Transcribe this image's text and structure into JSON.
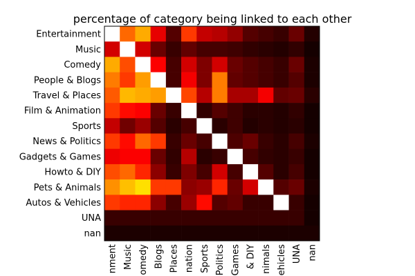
{
  "chart_data": {
    "type": "heatmap",
    "title": "percentage of category being linked to each other",
    "rows": [
      "Entertainment",
      "Music",
      "Comedy",
      "People & Blogs",
      "Travel & Places",
      "Film & Animation",
      "Sports",
      "News & Politics",
      "Gadgets & Games",
      "Howto & DIY",
      "Pets & Animals",
      "Autos & Vehicles",
      "UNA",
      "nan"
    ],
    "columns": [
      "Entertainment",
      "Music",
      "Comedy",
      "People & Blogs",
      "Travel & Places",
      "Film & Animation",
      "Sports",
      "News & Politics",
      "Gadgets & Games",
      "Howto & DIY",
      "Pets & Animals",
      "Autos & Vehicles",
      "UNA",
      "nan"
    ],
    "x_tick_labels_visible": [
      "nment",
      "Music",
      "omedy",
      "Blogs",
      "Places",
      "nation",
      "Sports",
      "Politics",
      "Games",
      "& DIY",
      "nimals",
      "ehicles",
      "UNA",
      "nan"
    ],
    "colormap": "hot",
    "value_range": [
      0,
      1
    ],
    "grid": false,
    "legend": "none",
    "values": [
      [
        1.0,
        0.52,
        0.62,
        0.33,
        0.12,
        0.45,
        0.28,
        0.26,
        0.21,
        0.12,
        0.1,
        0.08,
        0.15,
        0.05
      ],
      [
        0.3,
        1.0,
        0.3,
        0.15,
        0.08,
        0.14,
        0.1,
        0.1,
        0.09,
        0.07,
        0.06,
        0.05,
        0.07,
        0.03
      ],
      [
        0.62,
        0.48,
        1.0,
        0.36,
        0.1,
        0.3,
        0.18,
        0.3,
        0.15,
        0.12,
        0.1,
        0.08,
        0.15,
        0.04
      ],
      [
        0.55,
        0.45,
        0.6,
        1.0,
        0.1,
        0.35,
        0.18,
        0.55,
        0.14,
        0.12,
        0.1,
        0.08,
        0.12,
        0.04
      ],
      [
        0.5,
        0.64,
        0.62,
        0.6,
        1.0,
        0.47,
        0.26,
        0.55,
        0.24,
        0.24,
        0.35,
        0.14,
        0.15,
        0.06
      ],
      [
        0.45,
        0.38,
        0.36,
        0.15,
        0.08,
        1.0,
        0.07,
        0.12,
        0.09,
        0.06,
        0.06,
        0.05,
        0.07,
        0.03
      ],
      [
        0.28,
        0.16,
        0.22,
        0.12,
        0.06,
        0.1,
        1.0,
        0.06,
        0.09,
        0.05,
        0.06,
        0.05,
        0.06,
        0.03
      ],
      [
        0.45,
        0.38,
        0.52,
        0.45,
        0.08,
        0.15,
        0.1,
        1.0,
        0.11,
        0.15,
        0.08,
        0.06,
        0.1,
        0.04
      ],
      [
        0.34,
        0.36,
        0.36,
        0.15,
        0.07,
        0.26,
        0.06,
        0.08,
        1.0,
        0.1,
        0.07,
        0.06,
        0.08,
        0.03
      ],
      [
        0.48,
        0.52,
        0.42,
        0.2,
        0.08,
        0.18,
        0.1,
        0.3,
        0.1,
        1.0,
        0.12,
        0.06,
        0.1,
        0.03
      ],
      [
        0.58,
        0.65,
        0.7,
        0.45,
        0.45,
        0.2,
        0.22,
        0.42,
        0.15,
        0.3,
        1.0,
        0.12,
        0.15,
        0.04
      ],
      [
        0.45,
        0.42,
        0.42,
        0.2,
        0.1,
        0.22,
        0.38,
        0.12,
        0.14,
        0.08,
        0.08,
        1.0,
        0.08,
        0.03
      ],
      [
        0.08,
        0.08,
        0.08,
        0.08,
        0.08,
        0.08,
        0.08,
        0.08,
        0.08,
        0.08,
        0.08,
        0.08,
        0.08,
        0.03
      ],
      [
        0.04,
        0.04,
        0.04,
        0.04,
        0.04,
        0.04,
        0.04,
        0.04,
        0.04,
        0.04,
        0.04,
        0.04,
        0.04,
        0.04
      ]
    ]
  }
}
